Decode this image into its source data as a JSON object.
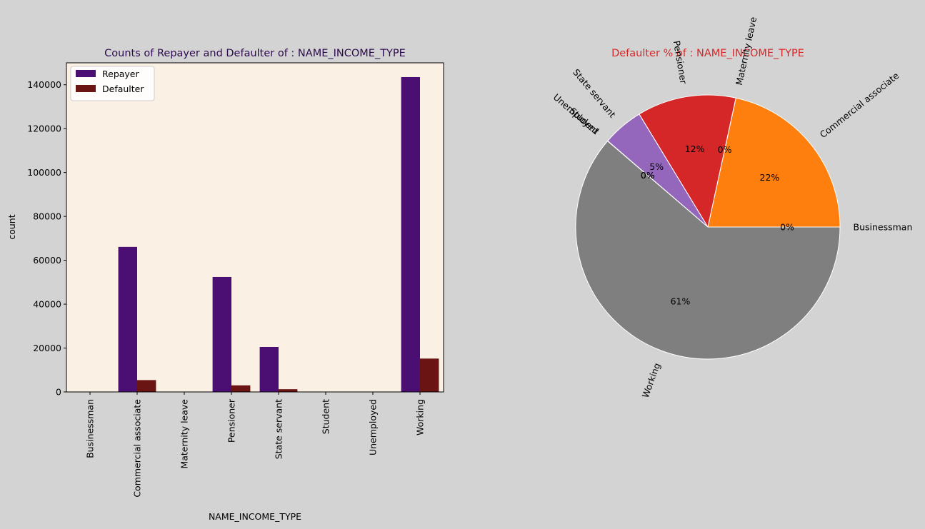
{
  "figure": {
    "background": "#d3d3d3"
  },
  "chart_data": [
    {
      "type": "bar",
      "title": "Counts of Repayer and Defaulter of : NAME_INCOME_TYPE",
      "title_color": "#2d0a4e",
      "xlabel": "NAME_INCOME_TYPE",
      "ylabel": "count",
      "plot_background": "#faf0e4",
      "categories": [
        "Businessman",
        "Commercial associate",
        "Maternity leave",
        "Pensioner",
        "State servant",
        "Student",
        "Unemployed",
        "Working"
      ],
      "series": [
        {
          "name": "Repayer",
          "color": "#4b0f73",
          "values": [
            10,
            66100,
            3,
            52400,
            20500,
            18,
            14,
            143500
          ]
        },
        {
          "name": "Defaulter",
          "color": "#6b1414",
          "values": [
            0,
            5400,
            2,
            3000,
            1250,
            0,
            8,
            15200
          ]
        }
      ],
      "ylim": [
        0,
        150000
      ],
      "yticks": [
        0,
        20000,
        40000,
        60000,
        80000,
        100000,
        120000,
        140000
      ],
      "grid": false,
      "legend_position": "top-left"
    },
    {
      "type": "pie",
      "title": "Defaulter % of : NAME_INCOME_TYPE",
      "title_color": "#d62728",
      "labels": [
        "Businessman",
        "Commercial associate",
        "Maternity leave",
        "Pensioner",
        "State servant",
        "Student",
        "Unemployed",
        "Working"
      ],
      "values": [
        0,
        21.6,
        0.01,
        12.1,
        5.0,
        0,
        0.03,
        61.3
      ],
      "pct_labels": [
        "0%",
        "22%",
        "0%",
        "12%",
        "5%",
        "0%",
        "0%",
        "61%"
      ],
      "colors": [
        "#1f77b4",
        "#ff7f0e",
        "#2ca02c",
        "#d62728",
        "#9467bd",
        "#8c564b",
        "#e377c2",
        "#7f7f7f"
      ],
      "edge_color": "#ffffff"
    }
  ]
}
